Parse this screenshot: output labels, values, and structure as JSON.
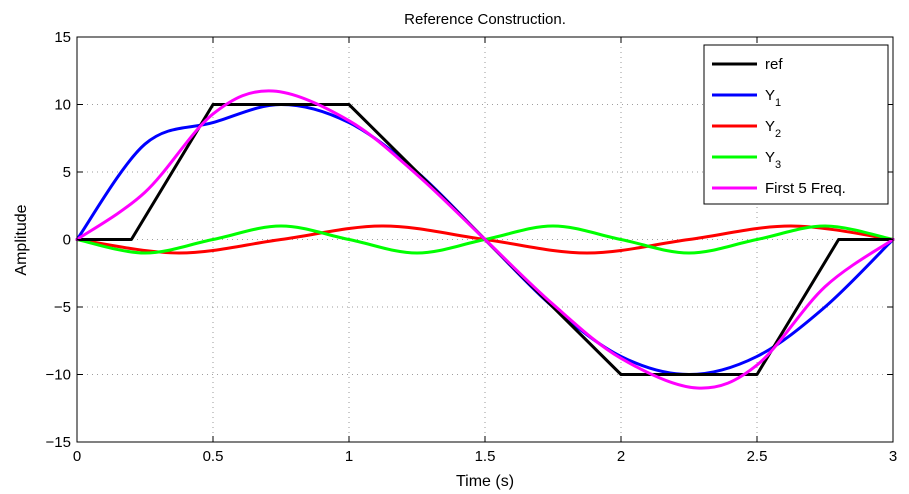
{
  "chart_data": {
    "type": "line",
    "title": "Reference Construction.",
    "xlabel": "Time (s)",
    "ylabel": "Amplitude",
    "xlim": [
      0,
      3
    ],
    "ylim": [
      -15,
      15
    ],
    "xticks": [
      0,
      0.5,
      1,
      1.5,
      2,
      2.5,
      3
    ],
    "xtick_labels": [
      "0",
      "0.5",
      "1",
      "1.5",
      "2",
      "2.5",
      "3"
    ],
    "yticks": [
      -15,
      -10,
      -5,
      0,
      5,
      10,
      15
    ],
    "ytick_labels": [
      "−15",
      "−10",
      "−5",
      "0",
      "5",
      "10",
      "15"
    ],
    "grid": true,
    "legend_position": "top-right",
    "series": [
      {
        "name": "ref",
        "name_main": "ref",
        "name_sub": "",
        "color": "#000000",
        "x": [
          0,
          0.2,
          0.5,
          1.0,
          1.5,
          2.0,
          2.5,
          2.8,
          3.0
        ],
        "y": [
          0,
          0,
          10,
          10,
          0,
          -10,
          -10,
          0,
          0
        ]
      },
      {
        "name": "Y1",
        "name_main": "Y",
        "name_sub": "1",
        "color": "#0000ff",
        "x": [
          0,
          0.25,
          0.5,
          0.75,
          1.0,
          1.25,
          1.5,
          1.75,
          2.0,
          2.25,
          2.5,
          2.75,
          3.0
        ],
        "y": [
          0,
          7.07,
          8.66,
          10.0,
          8.66,
          5.0,
          0,
          -5.0,
          -8.66,
          -10.0,
          -8.66,
          -5.0,
          0
        ]
      },
      {
        "name": "Y2",
        "name_main": "Y",
        "name_sub": "2",
        "color": "#ff0000",
        "x": [
          0,
          0.375,
          0.75,
          1.125,
          1.5,
          1.875,
          2.25,
          2.625,
          3.0
        ],
        "y": [
          0,
          -1.0,
          0,
          1.0,
          0,
          -1.0,
          0,
          1.0,
          0
        ]
      },
      {
        "name": "Y3",
        "name_main": "Y",
        "name_sub": "3",
        "color": "#00ff00",
        "x": [
          0,
          0.25,
          0.5,
          0.75,
          1.0,
          1.25,
          1.5,
          1.75,
          2.0,
          2.25,
          2.5,
          2.75,
          3.0
        ],
        "y": [
          0,
          -1.0,
          0,
          1.0,
          0,
          -1.0,
          0,
          1.0,
          0,
          -1.0,
          0,
          1.0,
          0
        ]
      },
      {
        "name": "First 5 Freq.",
        "name_main": "First 5 Freq.",
        "name_sub": "",
        "color": "#ff00ff",
        "x": [
          0,
          0.25,
          0.5,
          0.72,
          1.0,
          1.25,
          1.5,
          1.75,
          2.0,
          2.28,
          2.5,
          2.75,
          3.0
        ],
        "y": [
          0,
          3.5,
          9.3,
          11.0,
          8.8,
          4.8,
          0,
          -4.8,
          -8.8,
          -11.0,
          -9.3,
          -3.5,
          0
        ]
      }
    ]
  }
}
